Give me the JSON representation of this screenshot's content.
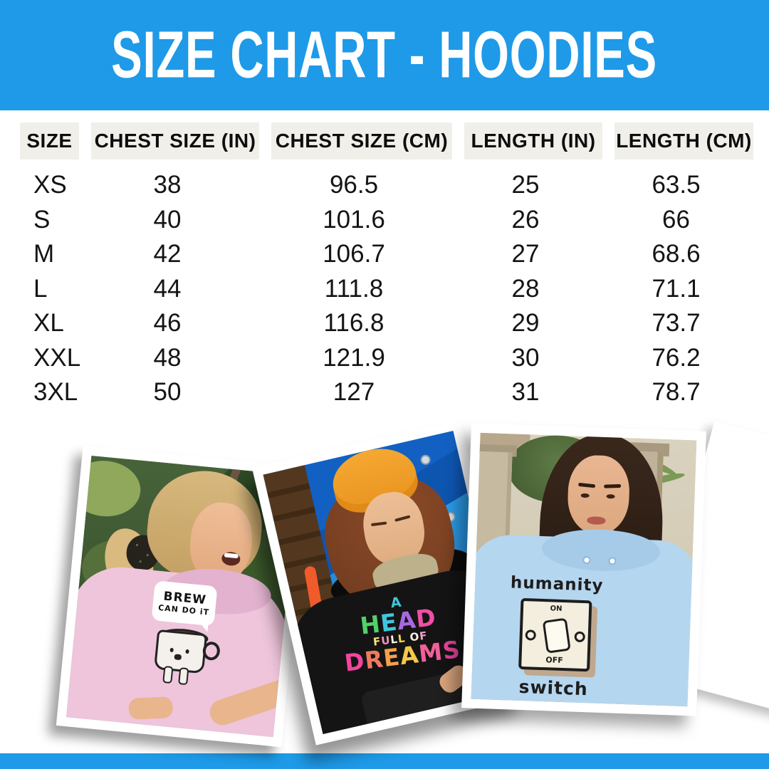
{
  "colors": {
    "banner_blue": "#1E9AE8",
    "header_cell_bg": "#F0EFE9",
    "hoodie_pink": "#EEC5DB",
    "hoodie_black": "#141414",
    "hoodie_light_blue": "#B5D6EF"
  },
  "header": {
    "title": "SIZE CHART - HOODIES"
  },
  "table": {
    "columns": [
      "SIZE",
      "CHEST SIZE (IN)",
      "CHEST SIZE (CM)",
      "LENGTH (IN)",
      "LENGTH (CM)"
    ],
    "rows": [
      {
        "size": "XS",
        "chest_in": "38",
        "chest_cm": "96.5",
        "len_in": "25",
        "len_cm": "63.5"
      },
      {
        "size": "S",
        "chest_in": "40",
        "chest_cm": "101.6",
        "len_in": "26",
        "len_cm": "66"
      },
      {
        "size": "M",
        "chest_in": "42",
        "chest_cm": "106.7",
        "len_in": "27",
        "len_cm": "68.6"
      },
      {
        "size": "L",
        "chest_in": "44",
        "chest_cm": "111.8",
        "len_in": "28",
        "len_cm": "71.1"
      },
      {
        "size": "XL",
        "chest_in": "46",
        "chest_cm": "116.8",
        "len_in": "29",
        "len_cm": "73.7"
      },
      {
        "size": "XXL",
        "chest_in": "48",
        "chest_cm": "121.9",
        "len_in": "30",
        "len_cm": "76.2"
      },
      {
        "size": "3XL",
        "chest_in": "50",
        "chest_cm": "127",
        "len_in": "31",
        "len_cm": "78.7"
      }
    ]
  },
  "photos": [
    {
      "id": "pink-hoodie",
      "design": {
        "line1": "BREW",
        "line2": "CAN DO iT"
      }
    },
    {
      "id": "black-hoodie",
      "design": {
        "lines": [
          {
            "text": "A",
            "colors": [
              "#3FC8D8"
            ]
          },
          {
            "text": "HEAD",
            "colors": [
              "#52D06A",
              "#3EC6E0",
              "#A868E0",
              "#F04FA8"
            ]
          },
          {
            "text": "FULL OF",
            "colors": [
              "#F7E27A",
              "#F291BE",
              "#FBF3E2",
              "#F5D94E",
              null,
              "#FBF3E2",
              "#F2A0C8"
            ]
          },
          {
            "text": "DREAMS",
            "colors": [
              "#F2459E",
              "#F07A5E",
              "#F5A04C",
              "#F6C74B",
              "#F2609A",
              "#E8459C"
            ]
          }
        ]
      }
    },
    {
      "id": "light-blue-hoodie",
      "design": {
        "word_top": "humanity",
        "switch_on": "ON",
        "switch_off": "OFF",
        "word_bottom": "switch"
      }
    }
  ]
}
